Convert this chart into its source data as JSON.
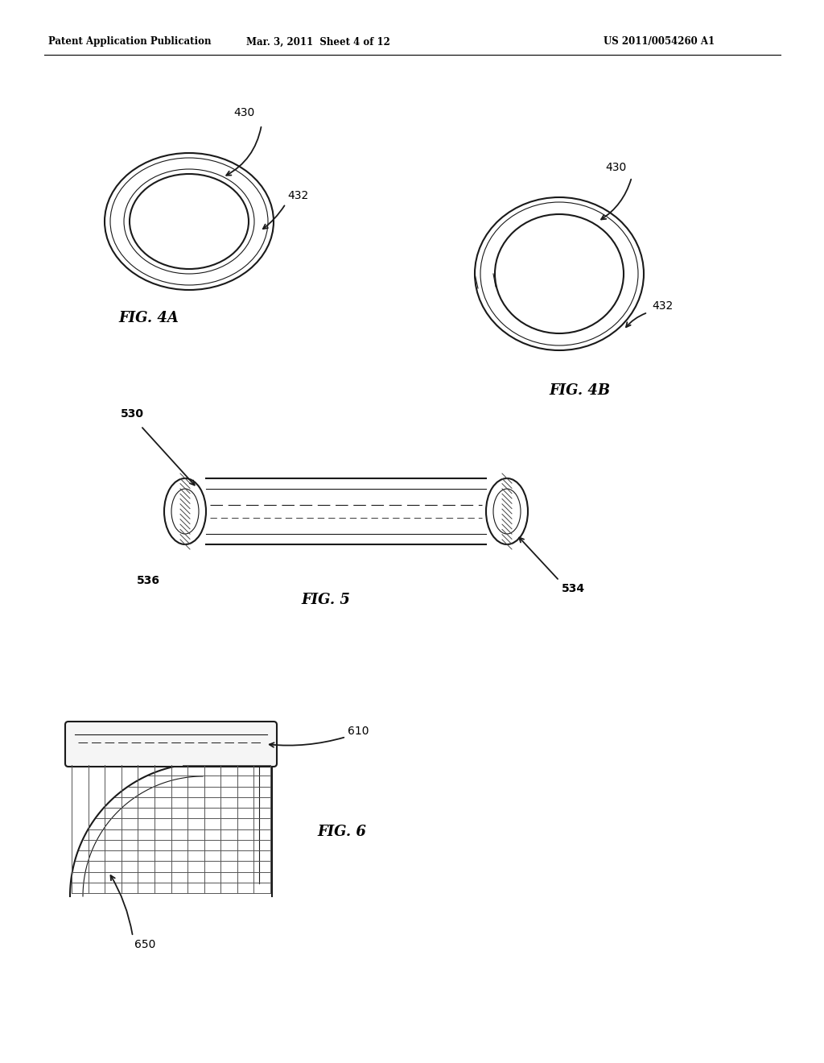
{
  "bg_color": "#ffffff",
  "header_left": "Patent Application Publication",
  "header_mid": "Mar. 3, 2011  Sheet 4 of 12",
  "header_right": "US 2011/0054260 A1",
  "fig4a_label": "FIG. 4A",
  "fig4b_label": "FIG. 4B",
  "fig5_label": "FIG. 5",
  "fig6_label": "FIG. 6",
  "lw_main": 1.5,
  "lw_thin": 0.8,
  "line_color": "#1a1a1a"
}
